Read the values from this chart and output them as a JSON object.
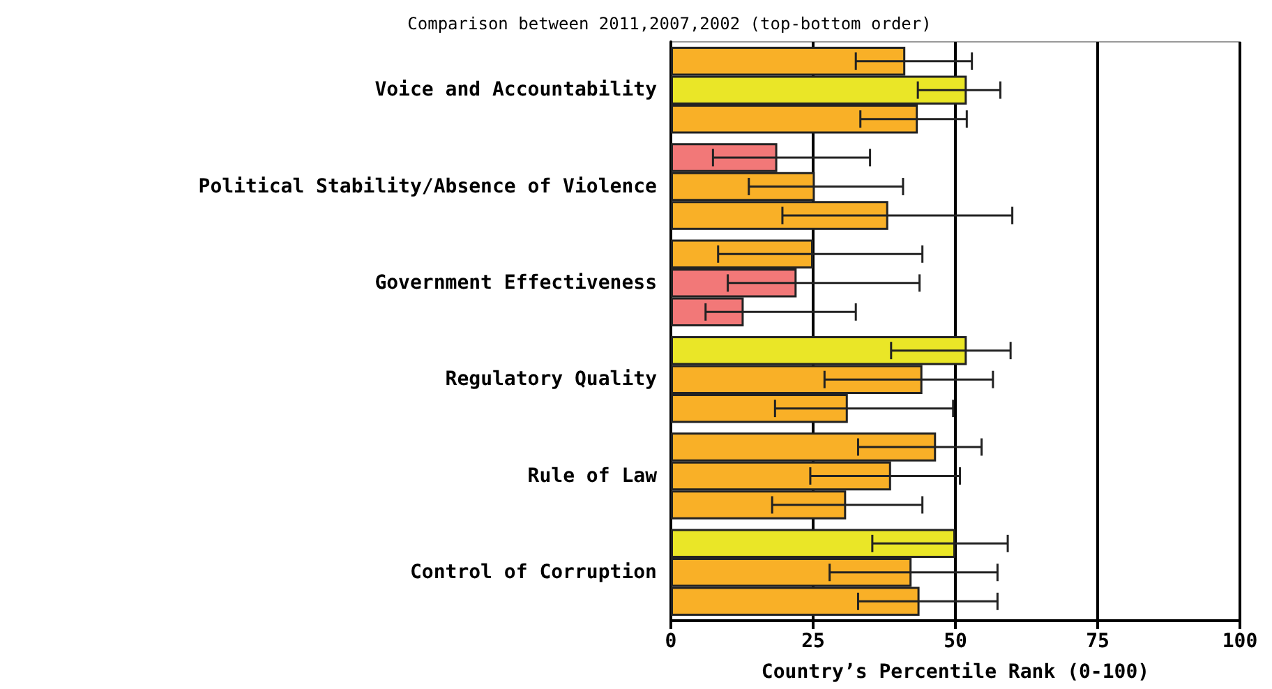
{
  "chart_data": {
    "type": "bar",
    "orientation": "horizontal",
    "title": "Comparison between 2011,2007,2002 (top-bottom order)",
    "xlabel": "Country’s Percentile Rank (0-100)",
    "categories": [
      "Voice and Accountability",
      "Political Stability/Absence of Violence",
      "Government Effectiveness",
      "Regulatory Quality",
      "Rule of Law",
      "Control of Corruption"
    ],
    "series": [
      {
        "colors": [
          "#f9b027",
          "#f27878",
          "#f9b027",
          "#eae627",
          "#f9b027",
          "#eae627"
        ],
        "values": [
          41.2,
          18.7,
          25.0,
          52.0,
          46.6,
          50.0
        ],
        "errors": [
          [
            32.5,
            52.9
          ],
          [
            7.4,
            35.0
          ],
          [
            8.3,
            44.2
          ],
          [
            38.7,
            59.7
          ],
          [
            32.9,
            54.6
          ],
          [
            35.4,
            59.2
          ]
        ]
      },
      {
        "colors": [
          "#eae627",
          "#f9b027",
          "#f27878",
          "#f9b027",
          "#f9b027",
          "#f9b027"
        ],
        "values": [
          52.0,
          25.3,
          22.1,
          44.2,
          38.7,
          42.3
        ],
        "errors": [
          [
            43.4,
            57.9
          ],
          [
            13.7,
            40.8
          ],
          [
            10.0,
            43.7
          ],
          [
            27.0,
            56.6
          ],
          [
            24.5,
            50.8
          ],
          [
            27.9,
            57.4
          ]
        ]
      },
      {
        "colors": [
          "#f9b027",
          "#f9b027",
          "#f27878",
          "#f9b027",
          "#f9b027",
          "#f9b027"
        ],
        "values": [
          43.4,
          38.2,
          12.8,
          31.1,
          30.8,
          43.7
        ],
        "errors": [
          [
            33.3,
            52.0
          ],
          [
            19.6,
            60.0
          ],
          [
            6.1,
            32.5
          ],
          [
            18.3,
            49.6
          ],
          [
            17.8,
            44.2
          ],
          [
            32.9,
            57.4
          ]
        ]
      }
    ],
    "xlim": [
      0,
      100
    ],
    "xticks": [
      0,
      25,
      50,
      75,
      100
    ],
    "grid": "x"
  }
}
